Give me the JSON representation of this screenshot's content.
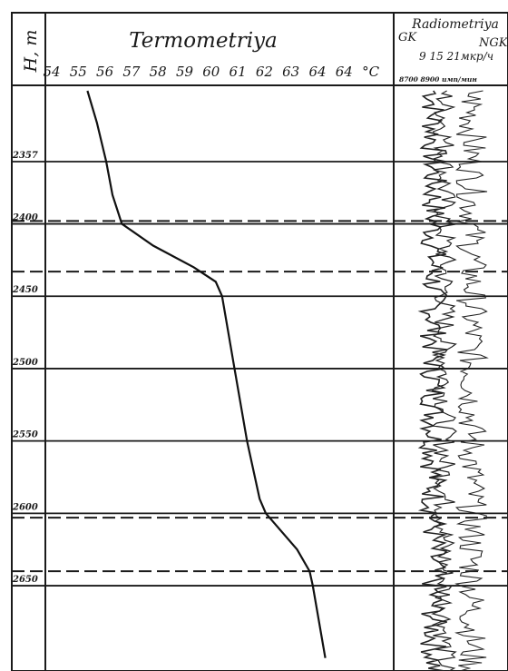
{
  "chart_data": [
    {
      "type": "line",
      "title": "Termometriya",
      "ylabel": "H, m",
      "xunit": "°C",
      "x_ticks": [
        "54",
        "55",
        "56",
        "57",
        "58",
        "59",
        "60",
        "61",
        "62",
        "63",
        "64",
        "64",
        "°C"
      ],
      "y_ticks": [
        "2357",
        "2400",
        "2450",
        "2500",
        "2550",
        "2600",
        "2650"
      ],
      "xlim": [
        54,
        65
      ],
      "ylim": [
        2300,
        2700
      ],
      "series": [
        {
          "points": [
            {
              "depth": 2300,
              "temp": 55.2
            },
            {
              "depth": 2330,
              "temp": 55.5
            },
            {
              "depth": 2357,
              "temp": 55.8
            },
            {
              "depth": 2380,
              "temp": 56.0
            },
            {
              "depth": 2400,
              "temp": 56.3
            },
            {
              "depth": 2415,
              "temp": 57.3
            },
            {
              "depth": 2430,
              "temp": 58.6
            },
            {
              "depth": 2440,
              "temp": 59.3
            },
            {
              "depth": 2450,
              "temp": 59.5
            },
            {
              "depth": 2500,
              "temp": 59.9
            },
            {
              "depth": 2550,
              "temp": 60.3
            },
            {
              "depth": 2590,
              "temp": 60.7
            },
            {
              "depth": 2600,
              "temp": 60.9
            },
            {
              "depth": 2625,
              "temp": 61.9
            },
            {
              "depth": 2640,
              "temp": 62.3
            },
            {
              "depth": 2650,
              "temp": 62.4
            },
            {
              "depth": 2700,
              "temp": 62.8
            }
          ]
        }
      ],
      "dashed_depths": [
        2398,
        2433,
        2603,
        2640
      ],
      "grid": true
    },
    {
      "type": "line",
      "title": "Radiometriya",
      "left_label": "GK",
      "right_label": "NGK",
      "scale_text": "9  15 21мкр/ч",
      "units_text": "8700 8900 имп/мин"
    }
  ]
}
